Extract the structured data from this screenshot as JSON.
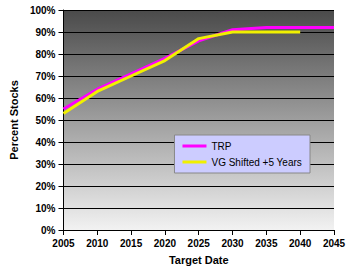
{
  "chart_data": {
    "type": "line",
    "xlabel": "Target Date",
    "ylabel": "Percent Stocks",
    "x": [
      2005,
      2010,
      2015,
      2020,
      2025,
      2030,
      2035,
      2040,
      2045
    ],
    "series": [
      {
        "name": "TRP",
        "color": "#ff00ff",
        "values": [
          55,
          64,
          71,
          78,
          86,
          91,
          92,
          92,
          92
        ]
      },
      {
        "name": "VG Shifted +5 Years",
        "color": "#f0f000",
        "values": [
          53,
          63,
          70,
          77,
          87,
          90,
          90,
          90,
          null
        ]
      }
    ],
    "xlim": [
      2005,
      2045
    ],
    "xticks": [
      2005,
      2010,
      2015,
      2020,
      2025,
      2030,
      2035,
      2040,
      2045
    ],
    "ylim": [
      0,
      100
    ],
    "yticks": [
      {
        "value": 0,
        "label": "0%"
      },
      {
        "value": 10,
        "label": "10%"
      },
      {
        "value": 20,
        "label": "20%"
      },
      {
        "value": 30,
        "label": "30%"
      },
      {
        "value": 40,
        "label": "40%"
      },
      {
        "value": 50,
        "label": "50%"
      },
      {
        "value": 60,
        "label": "60%"
      },
      {
        "value": 70,
        "label": "70%"
      },
      {
        "value": 80,
        "label": "80%"
      },
      {
        "value": 90,
        "label": "90%"
      },
      {
        "value": 100,
        "label": "100%"
      }
    ],
    "grid": true,
    "legend": "right"
  }
}
